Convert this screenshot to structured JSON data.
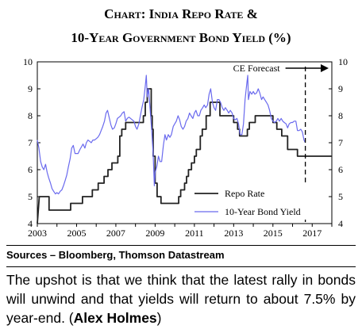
{
  "title_line1": "Chart: India Repo Rate &",
  "title_line2": "10-Year Government Bond Yield (%)",
  "sources": "Sources – Bloomberg, Thomson Datastream",
  "commentary": {
    "text": "The upshot is that we think that the latest rally in bonds will unwind and that yields will return to about 7.5% by year-end. (",
    "author": "Alex Holmes",
    "closing": ")"
  },
  "chart_data": {
    "type": "line",
    "title": "Chart: India Repo Rate & 10-Year Government Bond Yield (%)",
    "xlim": [
      2003,
      2018
    ],
    "ylim": [
      4,
      10
    ],
    "x_ticks": [
      "2003",
      "2005",
      "2007",
      "2009",
      "2011",
      "2013",
      "2015",
      "2017"
    ],
    "y_ticks_left": [
      "4",
      "5",
      "6",
      "7",
      "8",
      "9",
      "10"
    ],
    "y_ticks_right": [
      "4",
      "5",
      "6",
      "7",
      "8",
      "9",
      "10"
    ],
    "grid": false,
    "legend_position": "bottom-right",
    "forecast": {
      "label": "CE Forecast",
      "start": 2016.65
    },
    "series": [
      {
        "name": "Repo Rate",
        "color": "#222222",
        "style": "step",
        "points": [
          [
            2003.0,
            4.0
          ],
          [
            2003.1,
            5.0
          ],
          [
            2003.6,
            5.0
          ],
          [
            2003.6,
            4.5
          ],
          [
            2004.7,
            4.5
          ],
          [
            2004.7,
            4.75
          ],
          [
            2005.3,
            4.75
          ],
          [
            2005.3,
            5.0
          ],
          [
            2005.8,
            5.0
          ],
          [
            2005.8,
            5.25
          ],
          [
            2006.1,
            5.25
          ],
          [
            2006.1,
            5.5
          ],
          [
            2006.4,
            5.5
          ],
          [
            2006.4,
            5.75
          ],
          [
            2006.6,
            5.75
          ],
          [
            2006.6,
            6.0
          ],
          [
            2006.8,
            6.0
          ],
          [
            2006.8,
            6.25
          ],
          [
            2007.1,
            6.25
          ],
          [
            2007.1,
            6.5
          ],
          [
            2007.2,
            6.5
          ],
          [
            2007.2,
            7.25
          ],
          [
            2007.3,
            7.25
          ],
          [
            2007.3,
            7.5
          ],
          [
            2007.5,
            7.5
          ],
          [
            2007.5,
            7.75
          ],
          [
            2008.4,
            7.75
          ],
          [
            2008.4,
            8.0
          ],
          [
            2008.5,
            8.0
          ],
          [
            2008.5,
            8.5
          ],
          [
            2008.6,
            8.5
          ],
          [
            2008.6,
            9.0
          ],
          [
            2008.8,
            9.0
          ],
          [
            2008.8,
            8.0
          ],
          [
            2008.85,
            8.0
          ],
          [
            2008.85,
            7.5
          ],
          [
            2008.9,
            7.5
          ],
          [
            2008.9,
            6.5
          ],
          [
            2009.0,
            6.5
          ],
          [
            2009.0,
            5.5
          ],
          [
            2009.1,
            5.5
          ],
          [
            2009.1,
            5.0
          ],
          [
            2009.3,
            5.0
          ],
          [
            2009.3,
            4.75
          ],
          [
            2010.2,
            4.75
          ],
          [
            2010.2,
            5.0
          ],
          [
            2010.3,
            5.0
          ],
          [
            2010.3,
            5.25
          ],
          [
            2010.5,
            5.25
          ],
          [
            2010.5,
            5.5
          ],
          [
            2010.6,
            5.5
          ],
          [
            2010.6,
            5.75
          ],
          [
            2010.7,
            5.75
          ],
          [
            2010.7,
            6.0
          ],
          [
            2010.85,
            6.0
          ],
          [
            2010.85,
            6.25
          ],
          [
            2011.0,
            6.25
          ],
          [
            2011.0,
            6.5
          ],
          [
            2011.1,
            6.5
          ],
          [
            2011.1,
            6.75
          ],
          [
            2011.3,
            6.75
          ],
          [
            2011.3,
            7.25
          ],
          [
            2011.4,
            7.25
          ],
          [
            2011.4,
            7.5
          ],
          [
            2011.6,
            7.5
          ],
          [
            2011.6,
            8.0
          ],
          [
            2011.8,
            8.0
          ],
          [
            2011.8,
            8.5
          ],
          [
            2012.3,
            8.5
          ],
          [
            2012.3,
            8.0
          ],
          [
            2013.0,
            8.0
          ],
          [
            2013.0,
            7.75
          ],
          [
            2013.2,
            7.75
          ],
          [
            2013.2,
            7.5
          ],
          [
            2013.3,
            7.5
          ],
          [
            2013.3,
            7.25
          ],
          [
            2013.7,
            7.25
          ],
          [
            2013.7,
            7.5
          ],
          [
            2013.8,
            7.5
          ],
          [
            2013.8,
            7.75
          ],
          [
            2014.1,
            7.75
          ],
          [
            2014.1,
            8.0
          ],
          [
            2015.0,
            8.0
          ],
          [
            2015.0,
            7.75
          ],
          [
            2015.2,
            7.75
          ],
          [
            2015.2,
            7.5
          ],
          [
            2015.45,
            7.5
          ],
          [
            2015.45,
            7.25
          ],
          [
            2015.75,
            7.25
          ],
          [
            2015.75,
            6.75
          ],
          [
            2016.25,
            6.75
          ],
          [
            2016.25,
            6.5
          ],
          [
            2018.0,
            6.5
          ]
        ]
      },
      {
        "name": "10-Year Bond Yield",
        "color": "#6a6aee",
        "style": "line",
        "points": [
          [
            2003.0,
            7.1
          ],
          [
            2003.08,
            6.8
          ],
          [
            2003.17,
            6.3
          ],
          [
            2003.25,
            6.1
          ],
          [
            2003.33,
            6.0
          ],
          [
            2003.42,
            6.2
          ],
          [
            2003.5,
            5.9
          ],
          [
            2003.58,
            5.7
          ],
          [
            2003.67,
            5.5
          ],
          [
            2003.75,
            5.3
          ],
          [
            2003.83,
            5.2
          ],
          [
            2003.92,
            5.1
          ],
          [
            2004.0,
            5.15
          ],
          [
            2004.08,
            5.1
          ],
          [
            2004.17,
            5.2
          ],
          [
            2004.25,
            5.25
          ],
          [
            2004.33,
            5.4
          ],
          [
            2004.42,
            5.6
          ],
          [
            2004.5,
            5.8
          ],
          [
            2004.58,
            6.1
          ],
          [
            2004.67,
            6.4
          ],
          [
            2004.75,
            6.8
          ],
          [
            2004.83,
            6.9
          ],
          [
            2004.92,
            6.6
          ],
          [
            2005.0,
            6.6
          ],
          [
            2005.08,
            6.6
          ],
          [
            2005.17,
            6.75
          ],
          [
            2005.25,
            6.85
          ],
          [
            2005.33,
            6.95
          ],
          [
            2005.42,
            6.8
          ],
          [
            2005.5,
            7.0
          ],
          [
            2005.58,
            7.1
          ],
          [
            2005.67,
            7.05
          ],
          [
            2005.75,
            7.0
          ],
          [
            2005.83,
            7.1
          ],
          [
            2005.92,
            7.1
          ],
          [
            2006.0,
            7.15
          ],
          [
            2006.08,
            7.2
          ],
          [
            2006.17,
            7.3
          ],
          [
            2006.25,
            7.45
          ],
          [
            2006.33,
            7.6
          ],
          [
            2006.42,
            7.8
          ],
          [
            2006.5,
            8.1
          ],
          [
            2006.58,
            8.2
          ],
          [
            2006.67,
            7.9
          ],
          [
            2006.75,
            7.65
          ],
          [
            2006.83,
            7.5
          ],
          [
            2006.92,
            7.55
          ],
          [
            2007.0,
            7.7
          ],
          [
            2007.08,
            7.9
          ],
          [
            2007.17,
            7.95
          ],
          [
            2007.25,
            8.0
          ],
          [
            2007.33,
            8.1
          ],
          [
            2007.42,
            8.15
          ],
          [
            2007.5,
            7.8
          ],
          [
            2007.58,
            7.9
          ],
          [
            2007.67,
            7.95
          ],
          [
            2007.75,
            7.9
          ],
          [
            2007.83,
            7.85
          ],
          [
            2007.92,
            7.8
          ],
          [
            2008.0,
            7.6
          ],
          [
            2008.08,
            7.5
          ],
          [
            2008.17,
            7.7
          ],
          [
            2008.25,
            8.0
          ],
          [
            2008.33,
            8.3
          ],
          [
            2008.42,
            8.6
          ],
          [
            2008.5,
            9.1
          ],
          [
            2008.55,
            9.5
          ],
          [
            2008.6,
            8.7
          ],
          [
            2008.67,
            9.0
          ],
          [
            2008.75,
            8.2
          ],
          [
            2008.83,
            7.4
          ],
          [
            2008.9,
            6.6
          ],
          [
            2008.96,
            5.4
          ],
          [
            2009.0,
            5.9
          ],
          [
            2009.08,
            6.1
          ],
          [
            2009.17,
            6.5
          ],
          [
            2009.25,
            6.3
          ],
          [
            2009.33,
            6.3
          ],
          [
            2009.42,
            6.9
          ],
          [
            2009.5,
            7.3
          ],
          [
            2009.58,
            7.1
          ],
          [
            2009.67,
            7.3
          ],
          [
            2009.75,
            7.2
          ],
          [
            2009.83,
            7.3
          ],
          [
            2009.92,
            7.6
          ],
          [
            2010.0,
            7.7
          ],
          [
            2010.08,
            7.8
          ],
          [
            2010.17,
            8.0
          ],
          [
            2010.25,
            7.85
          ],
          [
            2010.33,
            7.6
          ],
          [
            2010.42,
            7.5
          ],
          [
            2010.5,
            7.6
          ],
          [
            2010.58,
            7.8
          ],
          [
            2010.67,
            7.9
          ],
          [
            2010.75,
            8.1
          ],
          [
            2010.83,
            8.0
          ],
          [
            2010.92,
            7.9
          ],
          [
            2011.0,
            8.1
          ],
          [
            2011.08,
            8.2
          ],
          [
            2011.17,
            8.0
          ],
          [
            2011.25,
            8.0
          ],
          [
            2011.33,
            8.2
          ],
          [
            2011.42,
            8.3
          ],
          [
            2011.5,
            8.4
          ],
          [
            2011.58,
            8.3
          ],
          [
            2011.67,
            8.4
          ],
          [
            2011.75,
            8.8
          ],
          [
            2011.83,
            9.0
          ],
          [
            2011.92,
            8.5
          ],
          [
            2012.0,
            8.3
          ],
          [
            2012.08,
            8.2
          ],
          [
            2012.17,
            8.6
          ],
          [
            2012.25,
            8.6
          ],
          [
            2012.33,
            8.5
          ],
          [
            2012.42,
            8.3
          ],
          [
            2012.5,
            8.2
          ],
          [
            2012.58,
            8.3
          ],
          [
            2012.67,
            8.2
          ],
          [
            2012.75,
            8.1
          ],
          [
            2012.83,
            8.2
          ],
          [
            2012.92,
            8.1
          ],
          [
            2013.0,
            7.9
          ],
          [
            2013.08,
            7.85
          ],
          [
            2013.17,
            7.9
          ],
          [
            2013.25,
            7.7
          ],
          [
            2013.33,
            7.3
          ],
          [
            2013.42,
            7.3
          ],
          [
            2013.5,
            7.7
          ],
          [
            2013.58,
            8.6
          ],
          [
            2013.67,
            9.2
          ],
          [
            2013.72,
            9.5
          ],
          [
            2013.75,
            8.6
          ],
          [
            2013.83,
            8.9
          ],
          [
            2013.92,
            8.8
          ],
          [
            2014.0,
            8.9
          ],
          [
            2014.08,
            8.8
          ],
          [
            2014.17,
            8.85
          ],
          [
            2014.25,
            9.0
          ],
          [
            2014.33,
            8.85
          ],
          [
            2014.42,
            8.6
          ],
          [
            2014.5,
            8.7
          ],
          [
            2014.58,
            8.6
          ],
          [
            2014.67,
            8.5
          ],
          [
            2014.75,
            8.4
          ],
          [
            2014.83,
            8.2
          ],
          [
            2014.92,
            7.9
          ],
          [
            2015.0,
            7.8
          ],
          [
            2015.08,
            7.75
          ],
          [
            2015.17,
            7.8
          ],
          [
            2015.25,
            7.9
          ],
          [
            2015.33,
            7.8
          ],
          [
            2015.42,
            7.9
          ],
          [
            2015.5,
            7.8
          ],
          [
            2015.58,
            7.75
          ],
          [
            2015.67,
            7.7
          ],
          [
            2015.75,
            7.55
          ],
          [
            2015.83,
            7.7
          ],
          [
            2015.92,
            7.75
          ],
          [
            2016.0,
            7.75
          ],
          [
            2016.08,
            7.8
          ],
          [
            2016.17,
            7.8
          ],
          [
            2016.25,
            7.45
          ],
          [
            2016.33,
            7.45
          ],
          [
            2016.42,
            7.5
          ],
          [
            2016.5,
            7.4
          ],
          [
            2016.58,
            7.1
          ],
          [
            2016.65,
            7.0
          ]
        ]
      }
    ]
  }
}
